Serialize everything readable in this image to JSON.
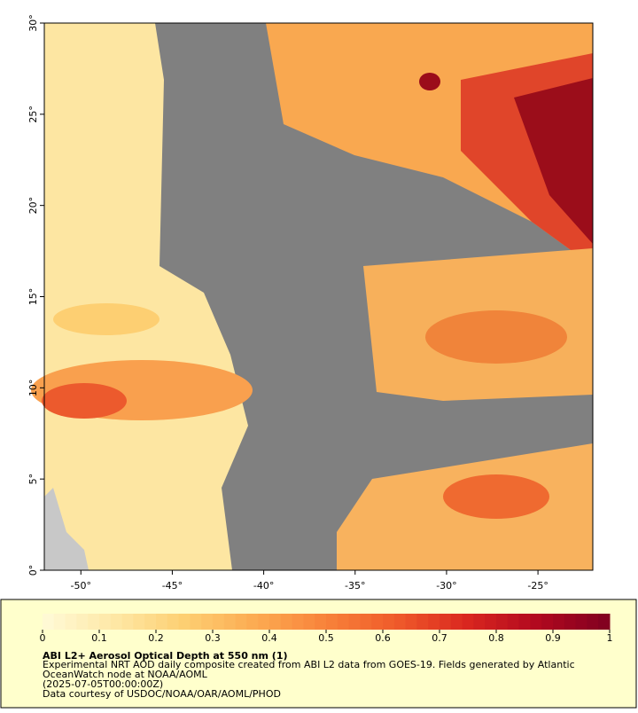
{
  "map": {
    "xlim": [
      -52,
      -22
    ],
    "ylim": [
      0,
      30
    ],
    "xticks": [
      {
        "value": -50,
        "label": "-50°"
      },
      {
        "value": -45,
        "label": "-45°"
      },
      {
        "value": -40,
        "label": "-40°"
      },
      {
        "value": -35,
        "label": "-35°"
      },
      {
        "value": -30,
        "label": "-30°"
      },
      {
        "value": -25,
        "label": "-25°"
      }
    ],
    "yticks": [
      {
        "value": 0,
        "label": "0°"
      },
      {
        "value": 5,
        "label": "5°"
      },
      {
        "value": 10,
        "label": "10°"
      },
      {
        "value": 15,
        "label": "15°"
      },
      {
        "value": 20,
        "label": "20°"
      },
      {
        "value": 25,
        "label": "25°"
      },
      {
        "value": 30,
        "label": "30°"
      }
    ]
  },
  "colorbar": {
    "range": [
      0,
      1
    ],
    "colors": [
      "#fffbd8",
      "#fee8a6",
      "#fdcf72",
      "#fcab52",
      "#f8823a",
      "#ef5a2a",
      "#d9261f",
      "#b0081f",
      "#7f0020"
    ],
    "ticks": [
      0,
      0.1,
      0.2,
      0.3,
      0.4,
      0.5,
      0.6,
      0.7,
      0.8,
      0.9,
      1
    ]
  },
  "caption": {
    "title": "ABI L2+ Aerosol Optical Depth at 550 nm (1)",
    "lines": [
      "Experimental NRT AOD daily composite created from ABI L2 data from GOES-19. Fields generated by Atlantic",
      "OceanWatch node at NOAA/AOML",
      "(2025-07-05T00:00:00Z)",
      "Data courtesy of USDOC/NOAA/OAR/AOML/PHOD"
    ]
  }
}
